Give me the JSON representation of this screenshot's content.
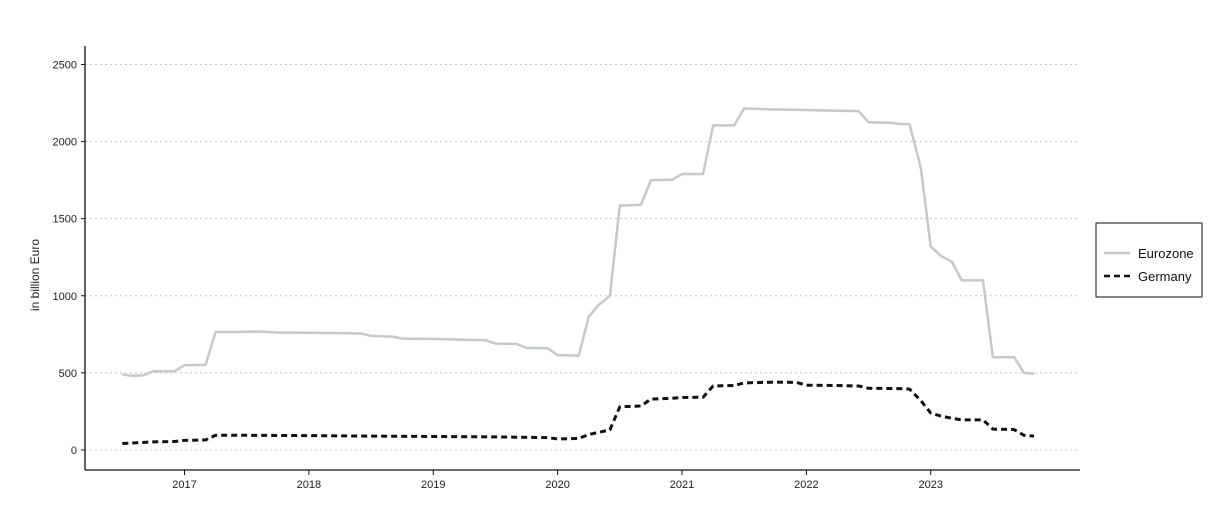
{
  "chart_data": {
    "type": "line",
    "title": "",
    "xlabel": "",
    "ylabel": "in billion Euro",
    "xlim": [
      2016.2,
      2024.2
    ],
    "ylim": [
      -130,
      2620
    ],
    "x_ticks": [
      2017,
      2018,
      2019,
      2020,
      2021,
      2022,
      2023
    ],
    "x_tick_labels": [
      "2017",
      "2018",
      "2019",
      "2020",
      "2021",
      "2022",
      "2023"
    ],
    "y_ticks": [
      0,
      500,
      1000,
      1500,
      2000,
      2500
    ],
    "y_tick_labels": [
      "0",
      "500",
      "1000",
      "1500",
      "2000",
      "2500"
    ],
    "grid": "horizontal dotted",
    "legend_position": "right",
    "series": [
      {
        "name": "Eurozone",
        "color": "#c5c9cc",
        "style": "solid",
        "points": [
          [
            2016.5,
            490
          ],
          [
            2016.58,
            480
          ],
          [
            2016.67,
            485
          ],
          [
            2016.75,
            510
          ],
          [
            2016.83,
            510
          ],
          [
            2016.92,
            510
          ],
          [
            2017.0,
            550
          ],
          [
            2017.17,
            552
          ],
          [
            2017.25,
            765
          ],
          [
            2017.42,
            765
          ],
          [
            2017.58,
            768
          ],
          [
            2017.75,
            762
          ],
          [
            2018.0,
            760
          ],
          [
            2018.25,
            758
          ],
          [
            2018.42,
            755
          ],
          [
            2018.5,
            740
          ],
          [
            2018.67,
            735
          ],
          [
            2018.75,
            722
          ],
          [
            2019.0,
            720
          ],
          [
            2019.25,
            715
          ],
          [
            2019.42,
            712
          ],
          [
            2019.5,
            690
          ],
          [
            2019.67,
            688
          ],
          [
            2019.75,
            662
          ],
          [
            2019.92,
            660
          ],
          [
            2020.0,
            615
          ],
          [
            2020.17,
            612
          ],
          [
            2020.25,
            865
          ],
          [
            2020.33,
            940
          ],
          [
            2020.42,
            1000
          ],
          [
            2020.5,
            1585
          ],
          [
            2020.67,
            1590
          ],
          [
            2020.75,
            1750
          ],
          [
            2020.92,
            1752
          ],
          [
            2021.0,
            1790
          ],
          [
            2021.17,
            1790
          ],
          [
            2021.25,
            2105
          ],
          [
            2021.42,
            2105
          ],
          [
            2021.5,
            2215
          ],
          [
            2021.67,
            2210
          ],
          [
            2022.0,
            2205
          ],
          [
            2022.25,
            2200
          ],
          [
            2022.42,
            2198
          ],
          [
            2022.5,
            2125
          ],
          [
            2022.67,
            2122
          ],
          [
            2022.75,
            2115
          ],
          [
            2022.83,
            2112
          ],
          [
            2022.92,
            1830
          ],
          [
            2023.0,
            1320
          ],
          [
            2023.08,
            1260
          ],
          [
            2023.17,
            1220
          ],
          [
            2023.25,
            1100
          ],
          [
            2023.42,
            1100
          ],
          [
            2023.5,
            600
          ],
          [
            2023.67,
            602
          ],
          [
            2023.75,
            500
          ],
          [
            2023.83,
            495
          ]
        ]
      },
      {
        "name": "Germany",
        "color": "#111111",
        "style": "dashed",
        "points": [
          [
            2016.5,
            42
          ],
          [
            2016.58,
            45
          ],
          [
            2016.75,
            52
          ],
          [
            2016.92,
            55
          ],
          [
            2017.0,
            62
          ],
          [
            2017.17,
            65
          ],
          [
            2017.25,
            95
          ],
          [
            2017.5,
            95
          ],
          [
            2018.0,
            93
          ],
          [
            2018.5,
            90
          ],
          [
            2019.0,
            87
          ],
          [
            2019.5,
            85
          ],
          [
            2019.92,
            80
          ],
          [
            2020.0,
            72
          ],
          [
            2020.17,
            74
          ],
          [
            2020.25,
            100
          ],
          [
            2020.42,
            130
          ],
          [
            2020.5,
            280
          ],
          [
            2020.67,
            285
          ],
          [
            2020.75,
            330
          ],
          [
            2020.92,
            335
          ],
          [
            2021.0,
            340
          ],
          [
            2021.17,
            342
          ],
          [
            2021.25,
            415
          ],
          [
            2021.42,
            418
          ],
          [
            2021.5,
            435
          ],
          [
            2021.75,
            440
          ],
          [
            2021.92,
            438
          ],
          [
            2022.0,
            420
          ],
          [
            2022.25,
            418
          ],
          [
            2022.42,
            415
          ],
          [
            2022.5,
            400
          ],
          [
            2022.75,
            398
          ],
          [
            2022.83,
            395
          ],
          [
            2022.92,
            320
          ],
          [
            2023.0,
            240
          ],
          [
            2023.08,
            220
          ],
          [
            2023.17,
            205
          ],
          [
            2023.25,
            195
          ],
          [
            2023.42,
            195
          ],
          [
            2023.5,
            135
          ],
          [
            2023.67,
            132
          ],
          [
            2023.75,
            95
          ],
          [
            2023.83,
            90
          ]
        ]
      }
    ]
  }
}
